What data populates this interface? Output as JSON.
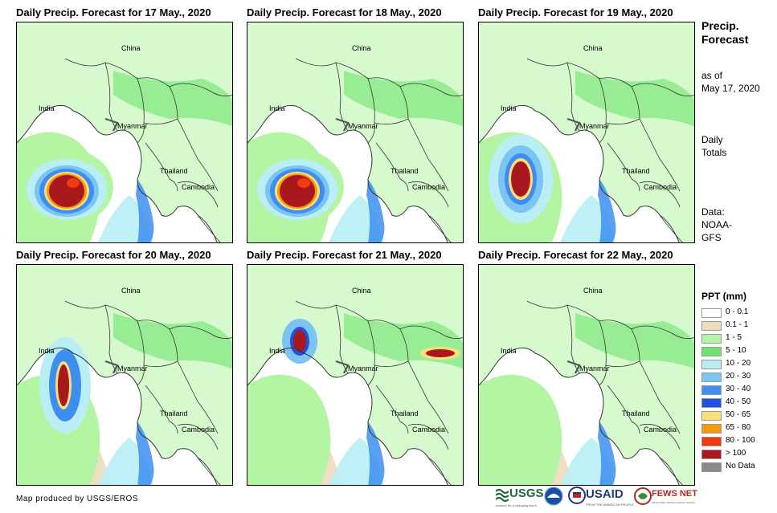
{
  "panels": [
    {
      "title": "Daily Precip. Forecast for 17 May., 2020",
      "storm": "large"
    },
    {
      "title": "Daily Precip. Forecast for 18 May., 2020",
      "storm": "large"
    },
    {
      "title": "Daily Precip. Forecast for 19 May., 2020",
      "storm": "medium"
    },
    {
      "title": "Daily Precip. Forecast for 20 May., 2020",
      "storm": "coast"
    },
    {
      "title": "Daily Precip. Forecast for 21 May., 2020",
      "storm": "inland"
    },
    {
      "title": "Daily Precip. Forecast for 22 May., 2020",
      "storm": "none"
    }
  ],
  "place_labels": {
    "china": "China",
    "india": "India",
    "myanmar": "Myanmar",
    "thailand": "Thailand",
    "cambodia": "Cambodia"
  },
  "sidebar": {
    "title": "Precip. Forecast",
    "as_of_label": "as of",
    "as_of_date": "May 17, 2020",
    "daily_totals": "Daily Totals",
    "data_label": "Data:",
    "data_source": "NOAA-GFS"
  },
  "legend": {
    "title": "PPT (mm)",
    "items": [
      {
        "label": "0 - 0.1",
        "color": "#ffffff"
      },
      {
        "label": "0.1 - 1",
        "color": "#ecdcbc"
      },
      {
        "label": "1 - 5",
        "color": "#b4f5a4"
      },
      {
        "label": "5 - 10",
        "color": "#6ee46e"
      },
      {
        "label": "10 - 20",
        "color": "#b9eef6"
      },
      {
        "label": "20 - 30",
        "color": "#7cc4f4"
      },
      {
        "label": "30 - 40",
        "color": "#3c8ff0"
      },
      {
        "label": "40 - 50",
        "color": "#1f52e0"
      },
      {
        "label": "50 - 65",
        "color": "#fbe07a"
      },
      {
        "label": "65 - 80",
        "color": "#f59a0c"
      },
      {
        "label": "80 - 100",
        "color": "#f03a10"
      },
      {
        "label": "> 100",
        "color": "#a8181c"
      },
      {
        "label": "No Data",
        "color": "#8a8a8a"
      }
    ]
  },
  "footer": {
    "credit": "Map produced by USGS/EROS",
    "logos": {
      "usgs": "USGS",
      "usgs_tagline": "science for a changing world",
      "usaid": "USAID",
      "usaid_tagline": "FROM THE AMERICAN PEOPLE",
      "fewsnet": "FEWS NET",
      "fewsnet_tagline": "Famine Early Warning Systems Network"
    }
  }
}
